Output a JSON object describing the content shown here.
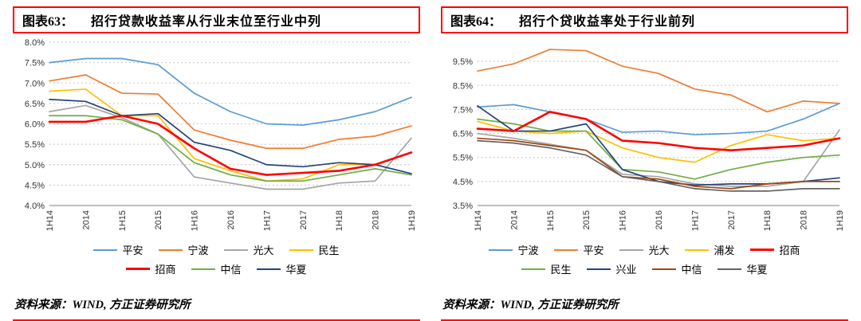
{
  "colors": {
    "accent_red": "#ff0000",
    "grid": "#c8c8c8",
    "axis": "#808080",
    "tick_text": "#333333"
  },
  "source": {
    "label": "资料来源：WIND, 方正证券研究所"
  },
  "charts": [
    {
      "id": "figure-63",
      "title_prefix": "图表63：",
      "title": "招行贷款收益率从行业末位至行业中列",
      "chart_data": {
        "type": "line",
        "x": [
          "1H14",
          "2014",
          "1H15",
          "2015",
          "1H16",
          "2016",
          "1H17",
          "2017",
          "1H18",
          "2018",
          "1H19"
        ],
        "ylim": [
          4.0,
          8.0
        ],
        "ytick": 0.5,
        "grid": "horizontal-dotted",
        "legend_position": "bottom",
        "series": [
          {
            "name": "平安",
            "color": "#5B9BD5",
            "emphasis": false,
            "values": [
              7.5,
              7.6,
              7.6,
              7.45,
              6.75,
              6.3,
              6.0,
              5.97,
              6.1,
              6.3,
              6.65
            ]
          },
          {
            "name": "宁波",
            "color": "#ED7D31",
            "emphasis": false,
            "values": [
              7.05,
              7.2,
              6.75,
              6.73,
              5.85,
              5.6,
              5.4,
              5.4,
              5.62,
              5.7,
              5.95
            ]
          },
          {
            "name": "光大",
            "color": "#A5A5A5",
            "emphasis": false,
            "values": [
              6.3,
              6.45,
              6.15,
              5.75,
              4.7,
              4.55,
              4.4,
              4.4,
              4.55,
              4.6,
              5.65
            ]
          },
          {
            "name": "民生",
            "color": "#FFC000",
            "emphasis": false,
            "values": [
              6.8,
              6.85,
              6.2,
              6.2,
              5.15,
              4.85,
              4.6,
              4.65,
              5.0,
              5.0,
              5.3
            ]
          },
          {
            "name": "招商",
            "color": "#FF0000",
            "emphasis": true,
            "values": [
              6.05,
              6.05,
              6.2,
              6.0,
              5.4,
              4.9,
              4.75,
              4.8,
              4.85,
              5.0,
              5.3
            ]
          },
          {
            "name": "中信",
            "color": "#70AD47",
            "emphasis": false,
            "values": [
              6.2,
              6.2,
              6.1,
              5.75,
              5.05,
              4.75,
              4.6,
              4.6,
              4.75,
              4.9,
              4.75
            ]
          },
          {
            "name": "华夏",
            "color": "#264478",
            "emphasis": false,
            "values": [
              6.6,
              6.55,
              6.2,
              6.25,
              5.55,
              5.35,
              5.0,
              4.95,
              5.05,
              5.0,
              4.78
            ]
          }
        ]
      }
    },
    {
      "id": "figure-64",
      "title_prefix": "图表64：",
      "title": "招行个贷收益率处于行业前列",
      "chart_data": {
        "type": "line",
        "x": [
          "1H14",
          "2014",
          "1H15",
          "2015",
          "1H16",
          "2016",
          "1H17",
          "2017",
          "1H18",
          "2018",
          "1H19"
        ],
        "ylim": [
          3.5,
          10.3
        ],
        "ytick": 1.0,
        "grid": "horizontal-dotted",
        "legend_position": "bottom",
        "series": [
          {
            "name": "宁波",
            "color": "#5B9BD5",
            "emphasis": false,
            "values": [
              7.6,
              7.7,
              7.4,
              7.1,
              6.55,
              6.6,
              6.45,
              6.5,
              6.6,
              7.1,
              7.75
            ]
          },
          {
            "name": "平安",
            "color": "#ED7D31",
            "emphasis": false,
            "values": [
              9.1,
              9.4,
              10.0,
              9.95,
              9.3,
              9.0,
              8.35,
              8.1,
              7.4,
              7.85,
              7.75
            ]
          },
          {
            "name": "光大",
            "color": "#A5A5A5",
            "emphasis": false,
            "values": [
              6.5,
              6.3,
              6.05,
              5.8,
              4.8,
              4.7,
              4.4,
              4.3,
              4.3,
              4.5,
              6.65
            ]
          },
          {
            "name": "浦发",
            "color": "#FFC000",
            "emphasis": false,
            "values": [
              7.0,
              6.6,
              6.5,
              6.6,
              5.9,
              5.5,
              5.3,
              6.0,
              6.45,
              6.2,
              6.3
            ]
          },
          {
            "name": "招商",
            "color": "#FF0000",
            "emphasis": true,
            "values": [
              6.7,
              6.6,
              7.4,
              7.1,
              6.2,
              6.1,
              5.9,
              5.8,
              5.9,
              6.0,
              6.3
            ]
          },
          {
            "name": "民生",
            "color": "#70AD47",
            "emphasis": false,
            "values": [
              7.1,
              6.9,
              6.6,
              6.6,
              5.0,
              4.9,
              4.6,
              5.0,
              5.3,
              5.5,
              5.6
            ]
          },
          {
            "name": "兴业",
            "color": "#264478",
            "emphasis": false,
            "values": [
              7.65,
              6.6,
              6.6,
              6.9,
              5.0,
              4.5,
              4.35,
              4.4,
              4.4,
              4.5,
              4.65
            ]
          },
          {
            "name": "中信",
            "color": "#9E480E",
            "emphasis": false,
            "values": [
              6.3,
              6.2,
              6.0,
              5.8,
              4.7,
              4.6,
              4.3,
              4.2,
              4.4,
              4.5,
              4.5
            ]
          },
          {
            "name": "华夏",
            "color": "#636363",
            "emphasis": false,
            "values": [
              6.2,
              6.1,
              5.9,
              5.6,
              4.7,
              4.5,
              4.2,
              4.1,
              4.1,
              4.2,
              4.2
            ]
          }
        ]
      }
    }
  ]
}
